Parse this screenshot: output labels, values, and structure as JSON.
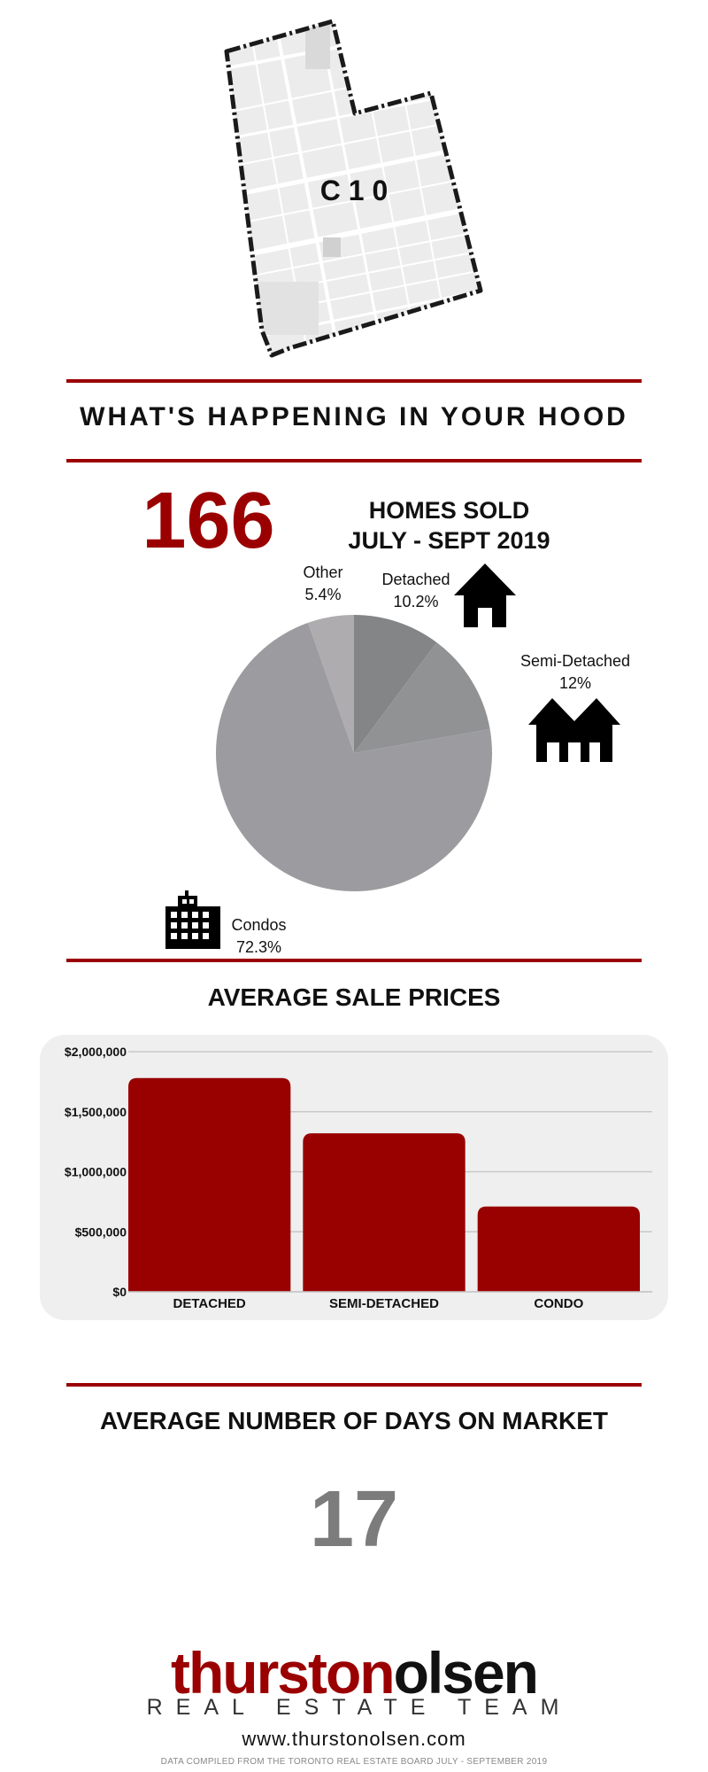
{
  "map": {
    "label": "C 1 0"
  },
  "header": {
    "title": "WHAT'S HAPPENING IN YOUR HOOD"
  },
  "homes_sold": {
    "count": "166",
    "line1": "HOMES SOLD",
    "line2": "JULY - SEPT 2019"
  },
  "chart_data": [
    {
      "type": "pie",
      "slices": [
        {
          "name": "Detached",
          "pct_label": "10.2%",
          "value": 10.2,
          "color": "#838587"
        },
        {
          "name": "Semi-Detached",
          "pct_label": "12%",
          "value": 12,
          "color": "#909294"
        },
        {
          "name": "Condos",
          "pct_label": "72.3%",
          "value": 72.3,
          "color": "#9c9ca0"
        },
        {
          "name": "Other",
          "pct_label": "5.4%",
          "value": 5.4,
          "color": "#aeacae"
        }
      ],
      "icons": [
        "house-icon",
        "semi-detached-icon",
        "condo-building-icon"
      ]
    },
    {
      "type": "bar",
      "title": "AVERAGE SALE PRICES",
      "categories": [
        "DETACHED",
        "SEMI-DETACHED",
        "CONDO"
      ],
      "values": [
        1780000,
        1320000,
        710000
      ],
      "ylim": [
        0,
        2000000
      ],
      "yticks": [
        0,
        500000,
        1000000,
        1500000,
        2000000
      ],
      "ytick_labels": [
        "$0",
        "$500,000",
        "$1,000,000",
        "$1,500,000",
        "$2,000,000"
      ],
      "bar_color": "#990000",
      "grid": true
    }
  ],
  "prices": {
    "title": "AVERAGE SALE PRICES"
  },
  "days_on_market": {
    "title": "AVERAGE NUMBER OF DAYS ON MARKET",
    "value": "17"
  },
  "brand": {
    "name_part1": "thurston",
    "name_part2": "olsen",
    "tagline": "REAL ESTATE TEAM",
    "website": "www.thurstonolsen.com"
  },
  "footnote": "DATA COMPILED FROM THE TORONTO REAL ESTATE BOARD JULY - SEPTEMBER 2019",
  "colors": {
    "accent": "#9b0000",
    "grey_number": "#7c7c7c"
  }
}
